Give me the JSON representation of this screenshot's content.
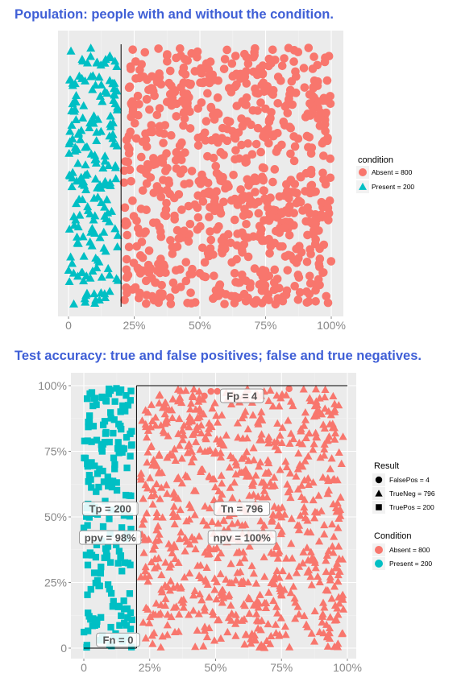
{
  "titles": {
    "top": "Population: people with and without the condition.",
    "bottom": "Test accuracy: true and false positives; false and true negatives."
  },
  "colors": {
    "absent": "#f8766d",
    "present": "#00bfc4",
    "panel": "#ebebeb",
    "grid": "#ffffff"
  },
  "chart_data": [
    {
      "type": "scatter",
      "title": "Population: people with and without the condition.",
      "xlabel": "",
      "ylabel": "",
      "xlim": [
        0,
        1
      ],
      "ylim": [
        0,
        1
      ],
      "x_ticks": [
        "0",
        "25%",
        "50%",
        "75%",
        "100%"
      ],
      "grid": true,
      "divider_x": 0.2,
      "legend": {
        "title": "condition",
        "placement": "right",
        "entries": [
          {
            "label": "Absent = 800",
            "shape": "circle",
            "color": "#f8766d"
          },
          {
            "label": "Present = 200",
            "shape": "triangle",
            "color": "#00bfc4"
          }
        ]
      },
      "series": [
        {
          "name": "Absent = 800",
          "count": 800,
          "x_range": [
            0.2,
            1.0
          ]
        },
        {
          "name": "Present = 200",
          "count": 200,
          "x_range": [
            0.0,
            0.2
          ]
        }
      ]
    },
    {
      "type": "scatter",
      "title": "Test accuracy: true and false positives; false and true negatives.",
      "xlabel": "",
      "ylabel": "",
      "xlim": [
        0,
        1
      ],
      "ylim": [
        0,
        1
      ],
      "x_ticks": [
        "0",
        "25%",
        "50%",
        "75%",
        "100%"
      ],
      "y_ticks": [
        "0",
        "25%",
        "50%",
        "75%",
        "100%"
      ],
      "grid": true,
      "divider_x": 0.2,
      "legend": [
        {
          "title": "Result",
          "placement": "right",
          "entries": [
            {
              "label": "FalsePos = 4",
              "shape": "circle"
            },
            {
              "label": "TrueNeg = 796",
              "shape": "triangle"
            },
            {
              "label": "TruePos = 200",
              "shape": "square"
            }
          ]
        },
        {
          "title": "Condition",
          "placement": "right",
          "entries": [
            {
              "label": "Absent = 800",
              "color": "#f8766d"
            },
            {
              "label": "Present = 200",
              "color": "#00bfc4"
            }
          ]
        }
      ],
      "annotations": [
        {
          "text": "Fp = 4",
          "x": 0.6,
          "y": 0.96
        },
        {
          "text": "Tp = 200",
          "x": 0.1,
          "y": 0.53
        },
        {
          "text": "Tn = 796",
          "x": 0.6,
          "y": 0.53
        },
        {
          "text": "ppv = 98%",
          "x": 0.1,
          "y": 0.42
        },
        {
          "text": "npv = 100%",
          "x": 0.6,
          "y": 0.42
        },
        {
          "text": "Fn = 0",
          "x": 0.13,
          "y": 0.03
        }
      ],
      "series": [
        {
          "name": "TruePos = 200",
          "condition": "Present",
          "count": 200
        },
        {
          "name": "TrueNeg = 796",
          "condition": "Absent",
          "count": 796
        },
        {
          "name": "FalsePos = 4",
          "condition": "Absent",
          "count": 4
        }
      ]
    }
  ]
}
